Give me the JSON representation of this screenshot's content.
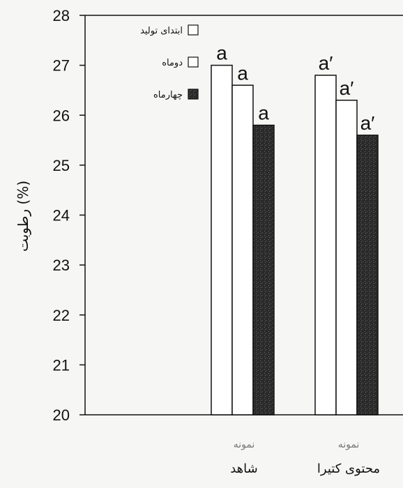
{
  "chart_data": {
    "type": "bar",
    "title": "",
    "ylabel": "رطوبت (%)",
    "xlabel": "",
    "ylim": [
      20,
      28
    ],
    "yticks": [
      20,
      21,
      22,
      23,
      24,
      25,
      26,
      27,
      28
    ],
    "categories": [
      {
        "line1": "نمونه",
        "line2": "شاهد"
      },
      {
        "line1": "نمونه",
        "line2": "محتوی کتیرا"
      }
    ],
    "series": [
      {
        "name": "ابتدای تولید",
        "fill": "#ffffff",
        "values": [
          27.0,
          26.8
        ],
        "labels": [
          "a",
          "a′"
        ]
      },
      {
        "name": "دوماه",
        "fill": "#ffffff",
        "values": [
          26.6,
          26.3
        ],
        "labels": [
          "a",
          "a′"
        ]
      },
      {
        "name": "چهارماه",
        "fill": "#222222",
        "values": [
          25.8,
          25.6
        ],
        "labels": [
          "a",
          "a′"
        ]
      }
    ],
    "legend_position": "top-left"
  }
}
